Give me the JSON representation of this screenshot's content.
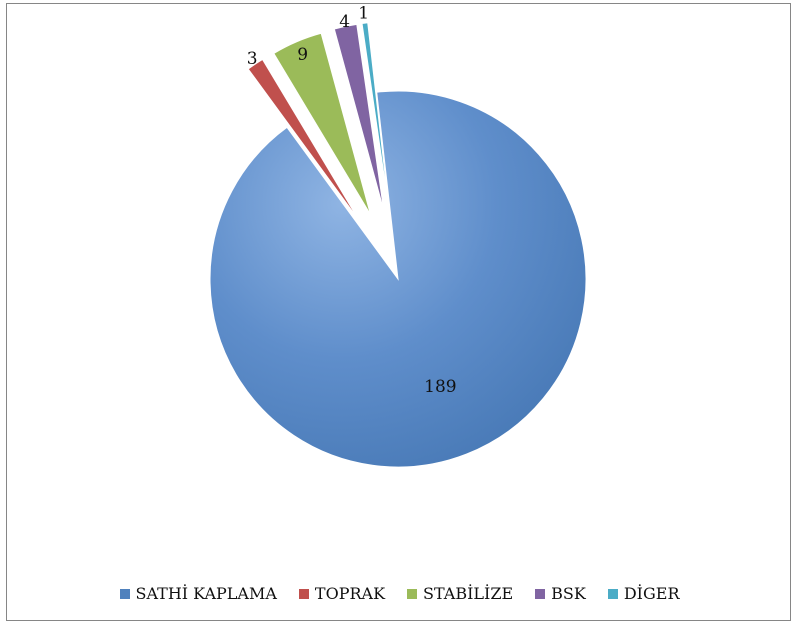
{
  "chart_data": {
    "type": "pie",
    "title": "",
    "exploded": true,
    "categories": [
      "SATHİ KAPLAMA",
      "TOPRAK",
      "STABİLİZE",
      "BSK",
      "DİGER"
    ],
    "values": [
      189,
      3,
      9,
      4,
      1
    ],
    "data_labels": [
      "189",
      "3",
      "9",
      "4",
      "1"
    ],
    "colors": [
      "#4f81bd",
      "#c0504d",
      "#9bbb59",
      "#8064a2",
      "#4bacc6"
    ],
    "legend_position": "bottom"
  }
}
